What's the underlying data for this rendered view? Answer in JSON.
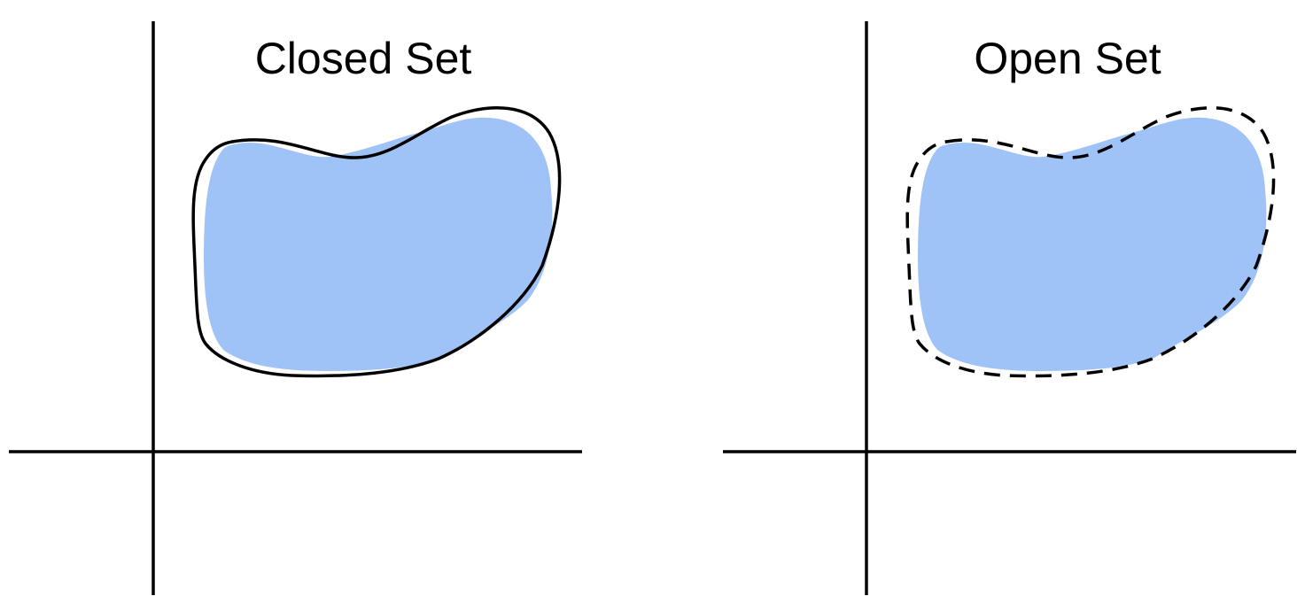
{
  "panels": [
    {
      "title": "Closed Set",
      "boundary_style": "solid"
    },
    {
      "title": "Open Set",
      "boundary_style": "dashed"
    }
  ],
  "colors": {
    "set_fill": "#a0c3f7",
    "line": "#000000",
    "background": "#ffffff"
  }
}
